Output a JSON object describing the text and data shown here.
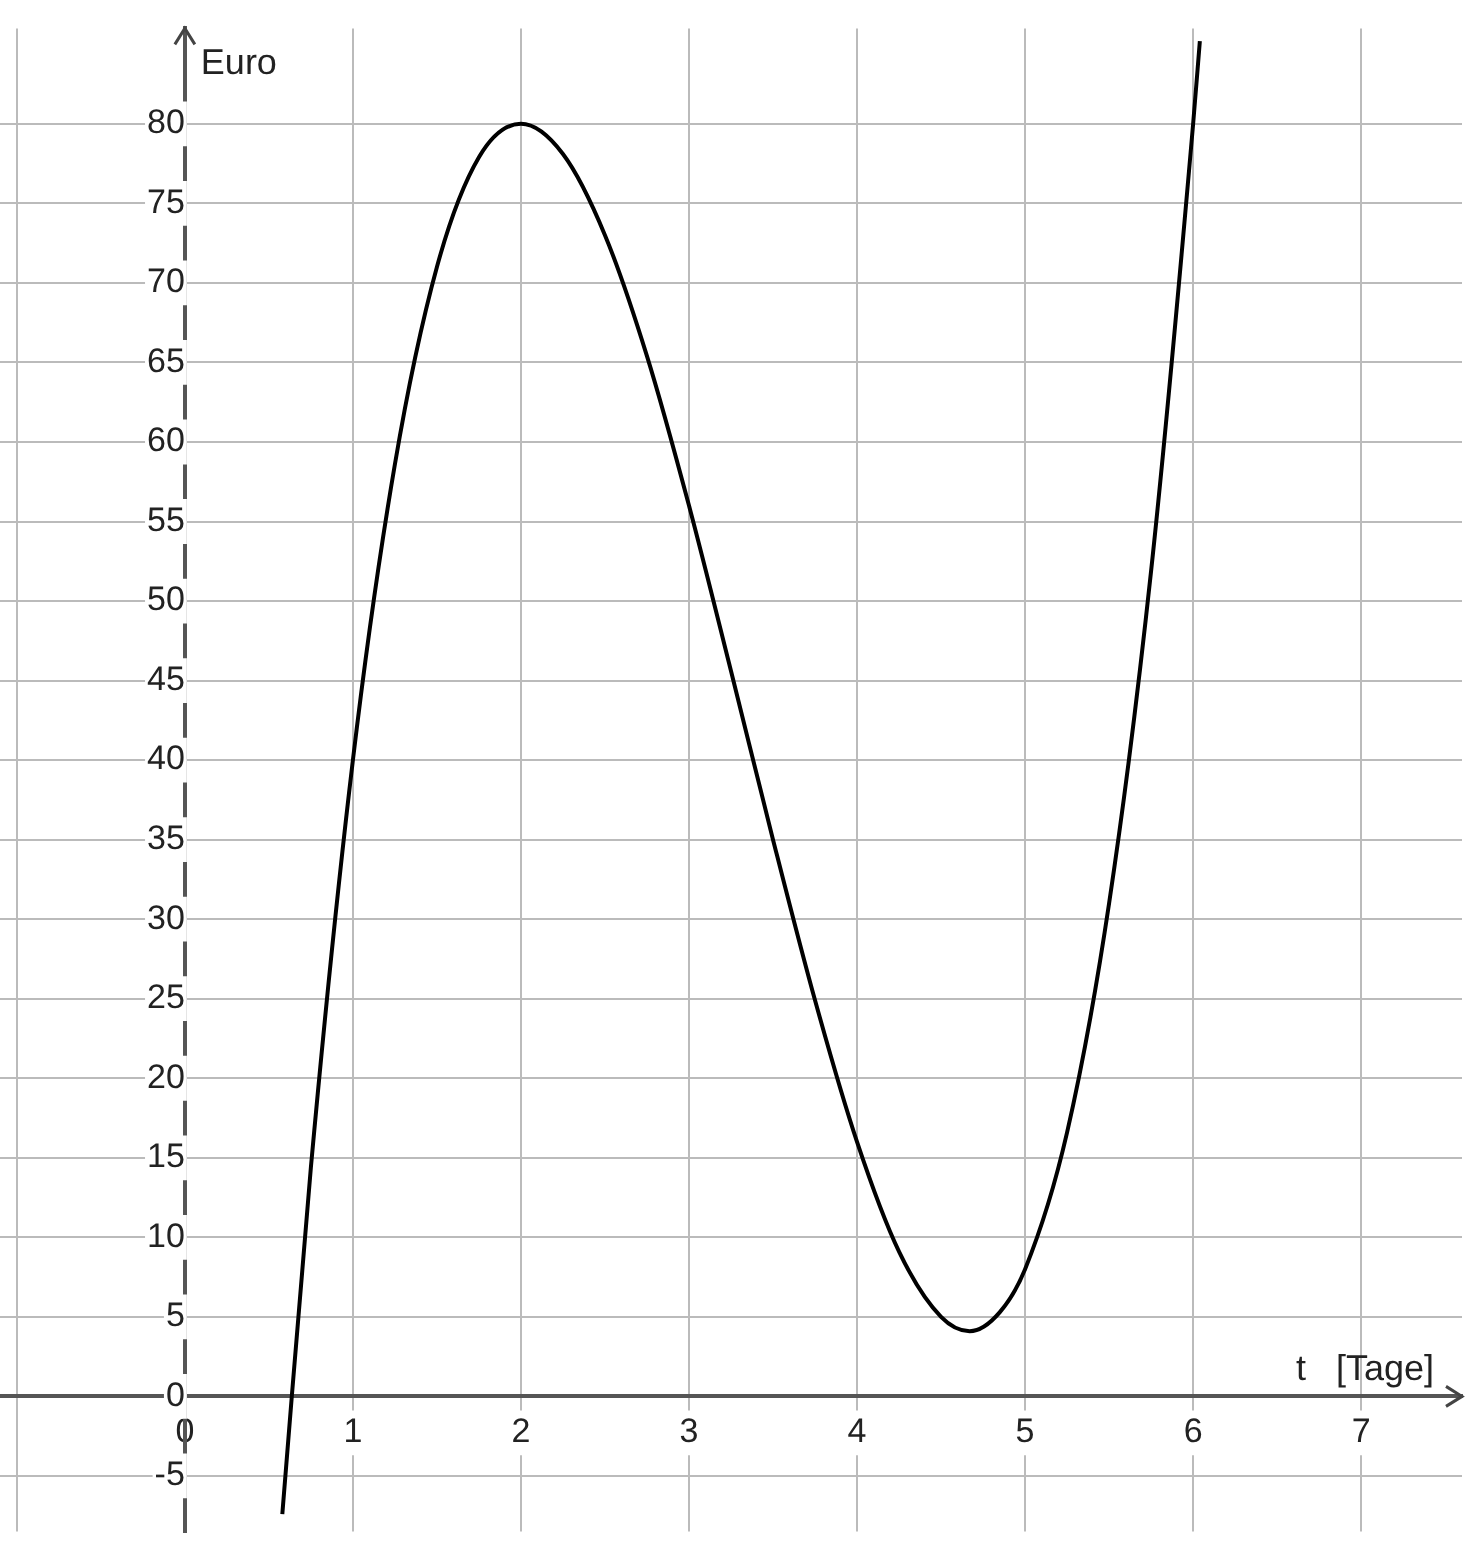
{
  "chart_data": {
    "type": "line",
    "xlabel": "t   [Tage]",
    "ylabel": "Euro",
    "x": [
      0.58,
      0.75,
      1,
      1.25,
      1.5,
      1.75,
      2,
      2.25,
      2.5,
      2.75,
      3,
      3.25,
      3.5,
      3.75,
      4,
      4.25,
      4.5,
      4.67,
      4.85,
      5,
      5.25,
      5.5,
      5.75,
      6,
      6.04
    ],
    "series": [
      {
        "color": "#000000",
        "values": [
          -7.4,
          14.4,
          40,
          58.6,
          71,
          77.9,
          80,
          78.1,
          73,
          65.4,
          56,
          45.6,
          35,
          24.9,
          16,
          9.1,
          5,
          4.1,
          5.3,
          8,
          16.6,
          31,
          51.9,
          80,
          85.2
        ]
      }
    ],
    "xlim": [
      -1.1,
      7.6
    ],
    "ylim": [
      -8.5,
      86
    ],
    "xticks": [
      {
        "value": -1,
        "label": null
      },
      0,
      1,
      2,
      3,
      4,
      5,
      6,
      7
    ],
    "yticks": [
      -5,
      0,
      5,
      10,
      15,
      20,
      25,
      30,
      35,
      40,
      45,
      50,
      55,
      60,
      65,
      70,
      75,
      80
    ],
    "grid": true,
    "marker": "none",
    "line_style": "solid",
    "legend": false
  }
}
